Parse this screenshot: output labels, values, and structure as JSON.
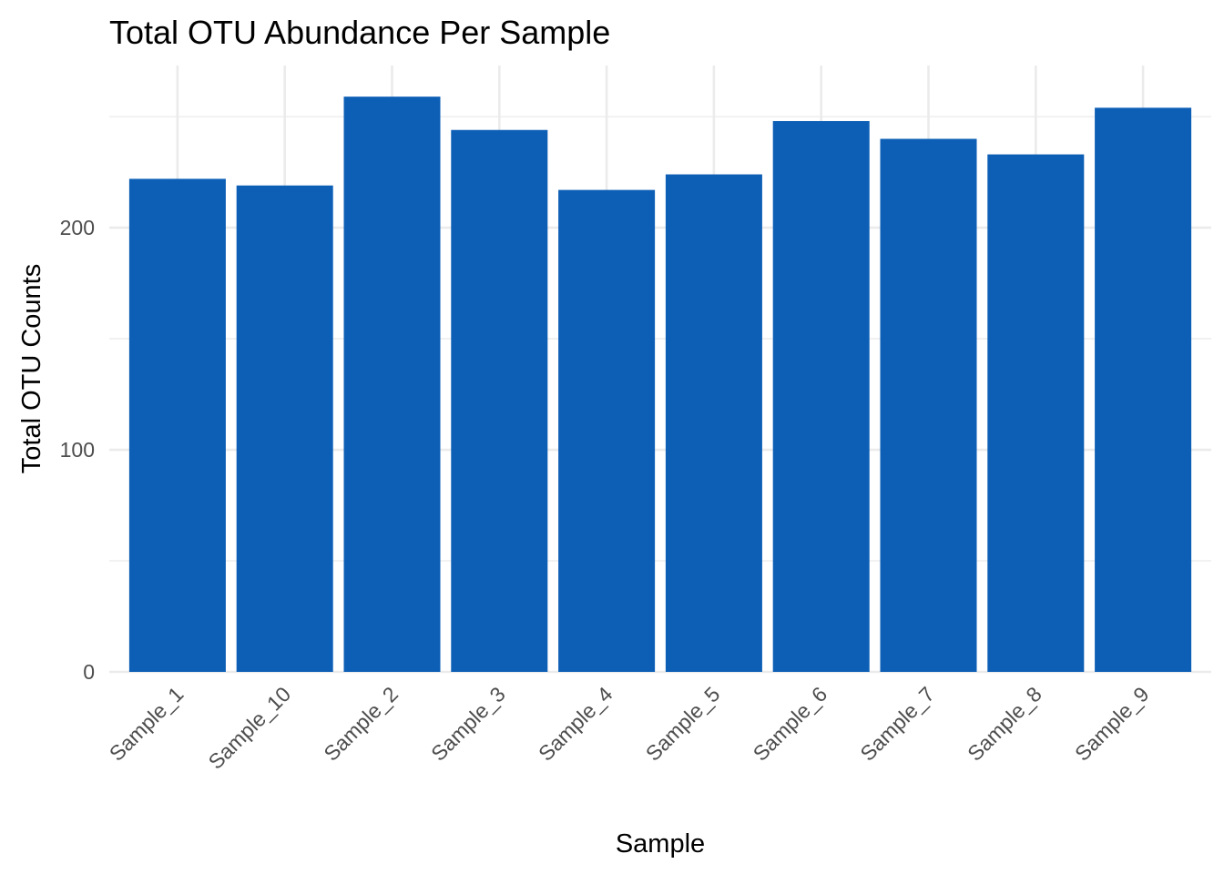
{
  "chart_data": {
    "type": "bar",
    "title": "Total OTU Abundance Per Sample",
    "xlabel": "Sample",
    "ylabel": "Total OTU Counts",
    "categories": [
      "Sample_1",
      "Sample_10",
      "Sample_2",
      "Sample_3",
      "Sample_4",
      "Sample_5",
      "Sample_6",
      "Sample_7",
      "Sample_8",
      "Sample_9"
    ],
    "values": [
      222,
      219,
      259,
      244,
      217,
      224,
      248,
      240,
      233,
      254
    ],
    "ylim": [
      0,
      273
    ],
    "yticks": [
      0,
      100,
      200
    ],
    "yticks_minor": [
      50,
      150,
      250
    ],
    "grid": true,
    "bar_color": "#0d5fb6",
    "grid_color": "#ebebeb",
    "tick_label_color": "#4d4d4d"
  }
}
